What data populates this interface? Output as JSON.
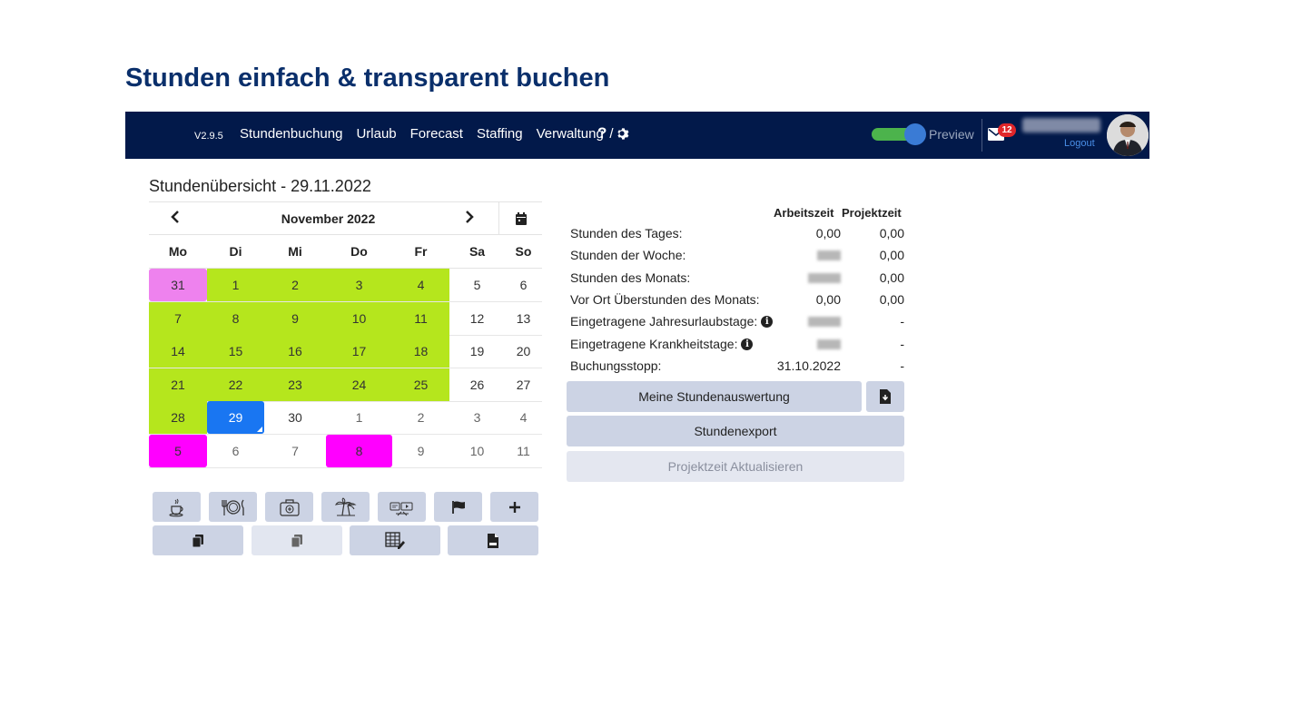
{
  "slide": {
    "title": "Stunden einfach & transparent buchen"
  },
  "navbar": {
    "version": "V2.9.5",
    "links": [
      "Stundenbuchung",
      "Urlaub",
      "Forecast",
      "Staffing",
      "Verwaltung"
    ],
    "help_label": "?",
    "help_sep": "/",
    "preview_label": "Preview",
    "mail_count": "12",
    "logout_label": "Logout",
    "colors": {
      "bg": "#02194a",
      "toggle_on": "#4cb34c",
      "badge": "#e0262a"
    }
  },
  "calendar": {
    "title": "Stundenübersicht - 29.11.2022",
    "month_label": "November 2022",
    "weekdays": [
      "Mo",
      "Di",
      "Mi",
      "Do",
      "Fr",
      "Sa",
      "So"
    ],
    "weeks": [
      [
        {
          "d": "31",
          "s": "pink"
        },
        {
          "d": "1",
          "s": "green"
        },
        {
          "d": "2",
          "s": "green"
        },
        {
          "d": "3",
          "s": "green"
        },
        {
          "d": "4",
          "s": "green"
        },
        {
          "d": "5",
          "s": "white"
        },
        {
          "d": "6",
          "s": "white"
        }
      ],
      [
        {
          "d": "7",
          "s": "green"
        },
        {
          "d": "8",
          "s": "green"
        },
        {
          "d": "9",
          "s": "green"
        },
        {
          "d": "10",
          "s": "green"
        },
        {
          "d": "11",
          "s": "green"
        },
        {
          "d": "12",
          "s": "white"
        },
        {
          "d": "13",
          "s": "white"
        }
      ],
      [
        {
          "d": "14",
          "s": "green"
        },
        {
          "d": "15",
          "s": "green"
        },
        {
          "d": "16",
          "s": "green"
        },
        {
          "d": "17",
          "s": "green"
        },
        {
          "d": "18",
          "s": "green"
        },
        {
          "d": "19",
          "s": "white"
        },
        {
          "d": "20",
          "s": "white"
        }
      ],
      [
        {
          "d": "21",
          "s": "green"
        },
        {
          "d": "22",
          "s": "green"
        },
        {
          "d": "23",
          "s": "green"
        },
        {
          "d": "24",
          "s": "green"
        },
        {
          "d": "25",
          "s": "green"
        },
        {
          "d": "26",
          "s": "white"
        },
        {
          "d": "27",
          "s": "white"
        }
      ],
      [
        {
          "d": "28",
          "s": "green"
        },
        {
          "d": "29",
          "s": "today"
        },
        {
          "d": "30",
          "s": "white"
        },
        {
          "d": "1",
          "s": "muted"
        },
        {
          "d": "2",
          "s": "muted"
        },
        {
          "d": "3",
          "s": "muted"
        },
        {
          "d": "4",
          "s": "muted"
        }
      ],
      [
        {
          "d": "5",
          "s": "magenta"
        },
        {
          "d": "6",
          "s": "muted"
        },
        {
          "d": "7",
          "s": "muted"
        },
        {
          "d": "8",
          "s": "magenta"
        },
        {
          "d": "9",
          "s": "muted"
        },
        {
          "d": "10",
          "s": "muted"
        },
        {
          "d": "11",
          "s": "muted"
        }
      ]
    ],
    "colors": {
      "green": "#b5e61d",
      "pink": "#ee82ee",
      "magenta": "#ff00ff",
      "today": "#1976f2"
    },
    "action_buttons_row1": [
      "coffee-icon",
      "cutlery-icon",
      "first-aid-icon",
      "palm-tree-icon",
      "presentation-icon",
      "flag-icon",
      "plus-icon"
    ],
    "action_buttons_row2": [
      "copy-icon",
      "copy-disabled-icon",
      "table-edit-icon",
      "csv-file-icon"
    ]
  },
  "stats": {
    "col_headers": [
      "Arbeitszeit",
      "Projektzeit"
    ],
    "rows": [
      {
        "label": "Stunden des Tages:",
        "arbeit": "0,00",
        "projekt": "0,00"
      },
      {
        "label": "Stunden der Woche:",
        "arbeit": "",
        "projekt": "0,00"
      },
      {
        "label": "Stunden des Monats:",
        "arbeit": "",
        "projekt": "0,00"
      },
      {
        "label": "Vor Ort Überstunden des Monats:",
        "arbeit": "0,00",
        "projekt": "0,00"
      },
      {
        "label": "Eingetragene Jahresurlaubstage:",
        "arbeit": "",
        "projekt": "-",
        "info": true
      },
      {
        "label": "Eingetragene Krankheitstage:",
        "arbeit": "",
        "projekt": "-",
        "info": true
      },
      {
        "label": "Buchungsstopp:",
        "arbeit": "31.10.2022",
        "projekt": "-"
      }
    ],
    "buttons": {
      "auswertung": "Meine Stundenauswertung",
      "export": "Stundenexport",
      "aktualisieren": "Projektzeit Aktualisieren"
    }
  }
}
